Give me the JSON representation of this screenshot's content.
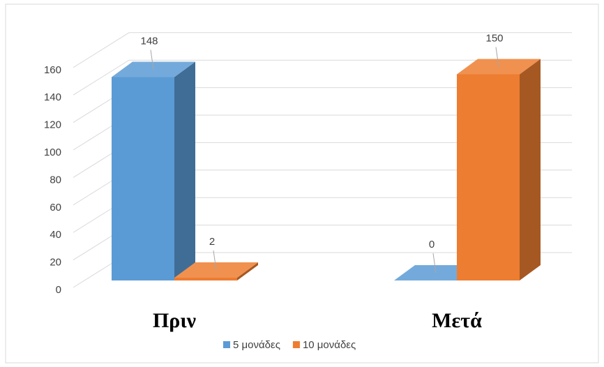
{
  "chart_data": {
    "type": "bar3d",
    "categories": [
      "Πριν",
      "Μετά"
    ],
    "series": [
      {
        "name": "5 μονάδες",
        "color": "#5b9bd5",
        "values": [
          148,
          0
        ]
      },
      {
        "name": "10 μονάδες",
        "color": "#ed7d31",
        "values": [
          2,
          150
        ]
      }
    ],
    "ylim": [
      0,
      160
    ],
    "yticks": [
      0,
      20,
      40,
      60,
      80,
      100,
      120,
      140,
      160
    ],
    "grid": true,
    "legend": "bottom"
  }
}
